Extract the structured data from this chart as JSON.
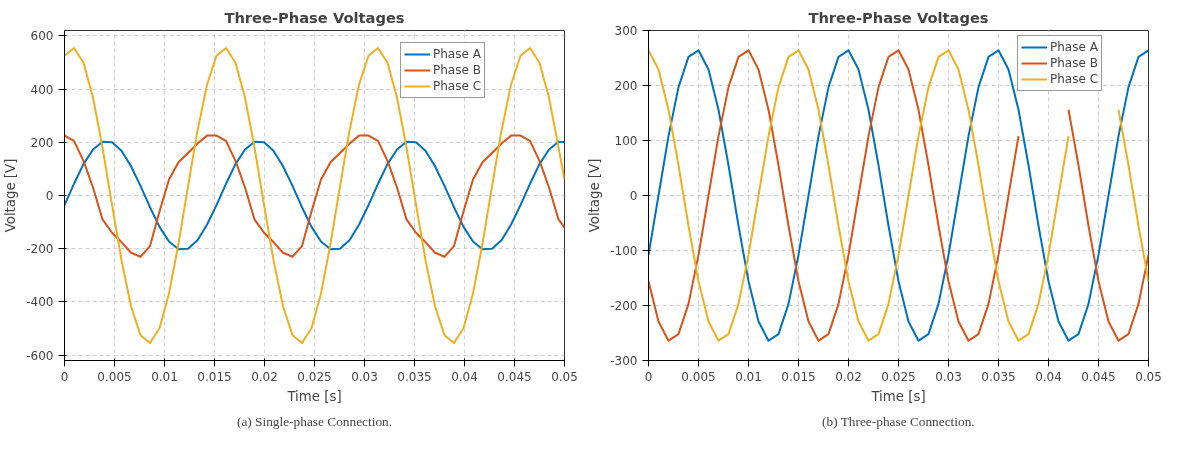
{
  "chart_data": [
    {
      "type": "line",
      "title": "Three-Phase Voltages",
      "xlabel": "Time [s]",
      "ylabel": "Voltage [V]",
      "annotations": [
        "(a) Single-phase Connection."
      ],
      "x": [
        0,
        0.00095,
        0.0019,
        0.00285,
        0.0038,
        0.00475,
        0.0057,
        0.00665,
        0.0076,
        0.00855,
        0.0095,
        0.01045,
        0.0114,
        0.01235,
        0.0133,
        0.01425,
        0.0152,
        0.01615,
        0.0171,
        0.01805,
        0.019,
        0.01995,
        0.0209,
        0.02185,
        0.0228,
        0.02375,
        0.0247,
        0.02565,
        0.0266,
        0.02755,
        0.0285,
        0.02945,
        0.0304,
        0.03135,
        0.0323,
        0.03325,
        0.0342,
        0.03515,
        0.0361,
        0.03705,
        0.038,
        0.03895,
        0.0399,
        0.04085,
        0.0418,
        0.04275,
        0.0437,
        0.04465,
        0.0456,
        0.04655,
        0.0475,
        0.04845,
        0.0494,
        0.05
      ],
      "series": [
        {
          "name": "Phase A",
          "color": "#0072bd",
          "values": [
            -36,
            44,
            118,
            173,
            202,
            200,
            168,
            110,
            36,
            -44,
            -118,
            -173,
            -202,
            -200,
            -168,
            -110,
            -36,
            44,
            118,
            173,
            202,
            200,
            168,
            110,
            36,
            -44,
            -118,
            -173,
            -202,
            -200,
            -168,
            -110,
            -36,
            44,
            118,
            173,
            202,
            200,
            168,
            110,
            36,
            -44,
            -118,
            -173,
            -202,
            -200,
            -168,
            -110,
            -36,
            44,
            118,
            173,
            202,
            200
          ]
        },
        {
          "name": "Phase B",
          "color": "#d95319",
          "values": [
            225,
            205,
            130,
            30,
            -90,
            -140,
            -175,
            -215,
            -230,
            -190,
            -60,
            60,
            125,
            160,
            195,
            225,
            225,
            205,
            130,
            30,
            -90,
            -140,
            -175,
            -215,
            -230,
            -190,
            -60,
            60,
            125,
            160,
            195,
            225,
            225,
            205,
            130,
            30,
            -90,
            -140,
            -175,
            -215,
            -230,
            -190,
            -60,
            60,
            125,
            160,
            195,
            225,
            225,
            205,
            130,
            30,
            -90,
            -120
          ]
        },
        {
          "name": "Phase C",
          "color": "#edb120",
          "values": [
            525,
            554,
            499,
            368,
            181,
            -34,
            -243,
            -416,
            -525,
            -554,
            -499,
            -368,
            -181,
            34,
            243,
            416,
            525,
            554,
            499,
            368,
            181,
            -34,
            -243,
            -416,
            -525,
            -554,
            -499,
            -368,
            -181,
            34,
            243,
            416,
            525,
            554,
            499,
            368,
            181,
            -34,
            -243,
            -416,
            -525,
            -554,
            -499,
            -368,
            -181,
            34,
            243,
            416,
            525,
            554,
            499,
            368,
            181,
            60
          ]
        }
      ],
      "xlim": [
        0,
        0.05
      ],
      "ylim": [
        -620,
        620
      ],
      "xticks": [
        0,
        0.005,
        0.01,
        0.015,
        0.02,
        0.025,
        0.03,
        0.035,
        0.04,
        0.045,
        0.05
      ],
      "yticks": [
        -600,
        -400,
        -200,
        0,
        200,
        400,
        600
      ],
      "grid": true,
      "legend": "top right",
      "line_style": "solid",
      "marker": "none"
    },
    {
      "type": "line",
      "title": "Three-Phase Voltages",
      "xlabel": "Time [s]",
      "ylabel": "Voltage [V]",
      "annotations": [
        "(b) Three-phase Connection."
      ],
      "x": [
        0,
        0.001,
        0.002,
        0.003,
        0.004,
        0.005,
        0.006,
        0.007,
        0.008,
        0.009,
        0.01,
        0.011,
        0.012,
        0.013,
        0.014,
        0.015,
        0.016,
        0.017,
        0.018,
        0.019,
        0.02,
        0.021,
        0.022,
        0.023,
        0.024,
        0.025,
        0.026,
        0.027,
        0.028,
        0.029,
        0.03,
        0.031,
        0.032,
        0.033,
        0.034,
        0.035,
        0.036,
        0.037,
        0.038,
        0.039,
        0.04,
        0.041,
        0.042,
        0.043,
        0.044,
        0.045,
        0.046,
        0.047,
        0.048,
        0.049,
        0.05
      ],
      "series": [
        {
          "name": "Phase A",
          "color": "#0072bd",
          "values": [
            -108,
            0,
            108,
            197,
            252,
            264,
            229,
            156,
            55,
            -55,
            -156,
            -229,
            -264,
            -252,
            -197,
            -108,
            0,
            108,
            197,
            252,
            264,
            229,
            156,
            55,
            -55,
            -156,
            -229,
            -264,
            -252,
            -197,
            -108,
            0,
            108,
            197,
            252,
            264,
            229,
            156,
            55,
            -55,
            -156,
            -229,
            -264,
            -252,
            -197,
            -108,
            0,
            108,
            197,
            252,
            264
          ]
        },
        {
          "name": "Phase B",
          "color": "#d95319",
          "values": [
            -156,
            -229,
            -264,
            -252,
            -197,
            -108,
            0,
            108,
            197,
            252,
            264,
            229,
            156,
            55,
            -55,
            -156,
            -229,
            -264,
            -252,
            -197,
            -108,
            0,
            108,
            197,
            252,
            264,
            229,
            156,
            55,
            -55,
            -156,
            -229,
            -264,
            -252,
            -197,
            -108,
            0,
            108,
            null,
            null,
            null,
            null,
            156,
            55,
            -55,
            -156,
            -229,
            -264,
            -252,
            -197,
            -108
          ]
        },
        {
          "name": "Phase C",
          "color": "#edb120",
          "values": [
            264,
            229,
            156,
            55,
            -55,
            -156,
            -229,
            -264,
            -252,
            -197,
            -108,
            0,
            108,
            197,
            252,
            264,
            229,
            156,
            55,
            -55,
            -156,
            -229,
            -264,
            -252,
            -197,
            -108,
            0,
            108,
            197,
            252,
            264,
            229,
            156,
            55,
            -55,
            -156,
            -229,
            -264,
            -252,
            -197,
            -108,
            0,
            108,
            null,
            null,
            null,
            null,
            156,
            55,
            -55,
            -156
          ]
        }
      ],
      "xlim": [
        0,
        0.05
      ],
      "ylim": [
        -300,
        300
      ],
      "xticks": [
        0,
        0.005,
        0.01,
        0.015,
        0.02,
        0.025,
        0.03,
        0.035,
        0.04,
        0.045,
        0.05
      ],
      "yticks": [
        -300,
        -200,
        -100,
        0,
        100,
        200,
        300
      ],
      "grid": true,
      "legend": "top right",
      "line_style": "solid",
      "marker": "none"
    }
  ]
}
